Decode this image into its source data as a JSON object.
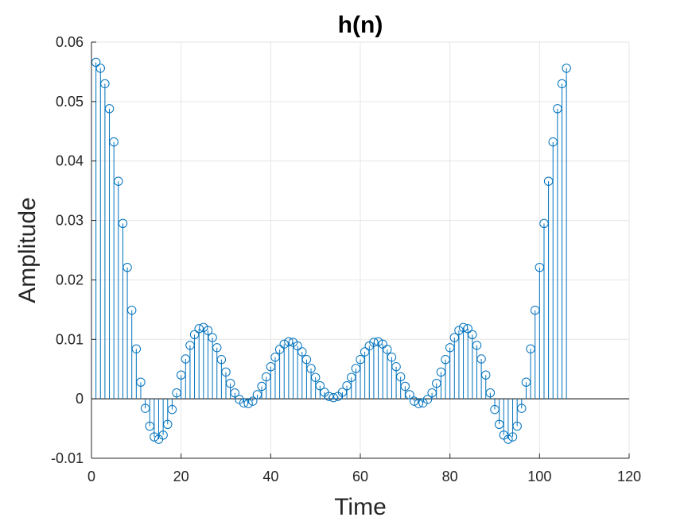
{
  "chart_data": {
    "type": "stem",
    "title": "h(n)",
    "xlabel": "Time",
    "ylabel": "Amplitude",
    "xlim": [
      0,
      120
    ],
    "ylim": [
      -0.01,
      0.06
    ],
    "xticks": [
      "0",
      "20",
      "40",
      "60",
      "80",
      "100",
      "120"
    ],
    "yticks": [
      "-0.01",
      "0",
      "0.01",
      "0.02",
      "0.03",
      "0.04",
      "0.05",
      "0.06"
    ],
    "xtick_values": [
      0,
      20,
      40,
      60,
      80,
      100,
      120
    ],
    "ytick_values": [
      -0.01,
      0,
      0.01,
      0.02,
      0.03,
      0.04,
      0.05,
      0.06
    ],
    "grid": true,
    "baseline": 0,
    "series_color": "#0072BD",
    "series": [
      {
        "x": [
          1,
          2,
          3,
          4,
          5,
          6,
          7,
          8,
          9,
          10,
          11,
          12,
          13,
          14,
          15,
          16,
          17,
          18,
          19,
          20,
          21,
          22,
          23,
          24,
          25,
          26,
          27,
          28,
          29,
          30,
          31,
          32,
          33,
          34,
          35,
          36,
          37,
          38,
          39,
          40,
          41,
          42,
          43,
          44,
          45,
          46,
          47,
          48,
          49,
          50,
          51,
          52,
          53,
          54,
          55,
          56,
          57,
          58,
          59,
          60,
          61,
          62,
          63,
          64,
          65,
          66,
          67,
          68,
          69,
          70,
          71,
          72,
          73,
          74,
          75,
          76,
          77,
          78,
          79,
          80,
          81,
          82,
          83,
          84,
          85,
          86,
          87,
          88,
          89,
          90,
          91,
          92,
          93,
          94,
          95,
          96,
          97,
          98,
          99,
          100,
          101,
          102,
          103,
          104,
          105,
          106
        ],
        "values": [
          0.0566,
          0.0556,
          0.053,
          0.0488,
          0.0432,
          0.0366,
          0.0295,
          0.0221,
          0.0149,
          0.0084,
          0.0028,
          -0.0016,
          -0.0046,
          -0.0064,
          -0.0068,
          -0.0061,
          -0.0043,
          -0.0018,
          0.001,
          0.004,
          0.0067,
          0.009,
          0.0108,
          0.0118,
          0.012,
          0.0115,
          0.0103,
          0.0086,
          0.0066,
          0.0045,
          0.0026,
          0.001,
          -0.0001,
          -0.0007,
          -0.0008,
          -0.0004,
          0.0007,
          0.0021,
          0.0037,
          0.0054,
          0.007,
          0.0083,
          0.0092,
          0.0096,
          0.0095,
          0.0089,
          0.0079,
          0.0066,
          0.0051,
          0.0036,
          0.0022,
          0.0011,
          0.0004,
          0.0002,
          0.0004,
          0.0011,
          0.0022,
          0.0036,
          0.0051,
          0.0066,
          0.0079,
          0.0089,
          0.0095,
          0.0096,
          0.0092,
          0.0083,
          0.007,
          0.0054,
          0.0037,
          0.0021,
          0.0007,
          -0.0004,
          -0.0008,
          -0.0007,
          -0.0001,
          0.001,
          0.0026,
          0.0045,
          0.0066,
          0.0086,
          0.0103,
          0.0115,
          0.012,
          0.0118,
          0.0108,
          0.009,
          0.0067,
          0.004,
          0.001,
          -0.0018,
          -0.0043,
          -0.0061,
          -0.0068,
          -0.0064,
          -0.0046,
          -0.0016,
          0.0028,
          0.0084,
          0.0149,
          0.0221,
          0.0295,
          0.0366,
          0.0432,
          0.0488,
          0.053,
          0.0556
        ]
      }
    ]
  }
}
